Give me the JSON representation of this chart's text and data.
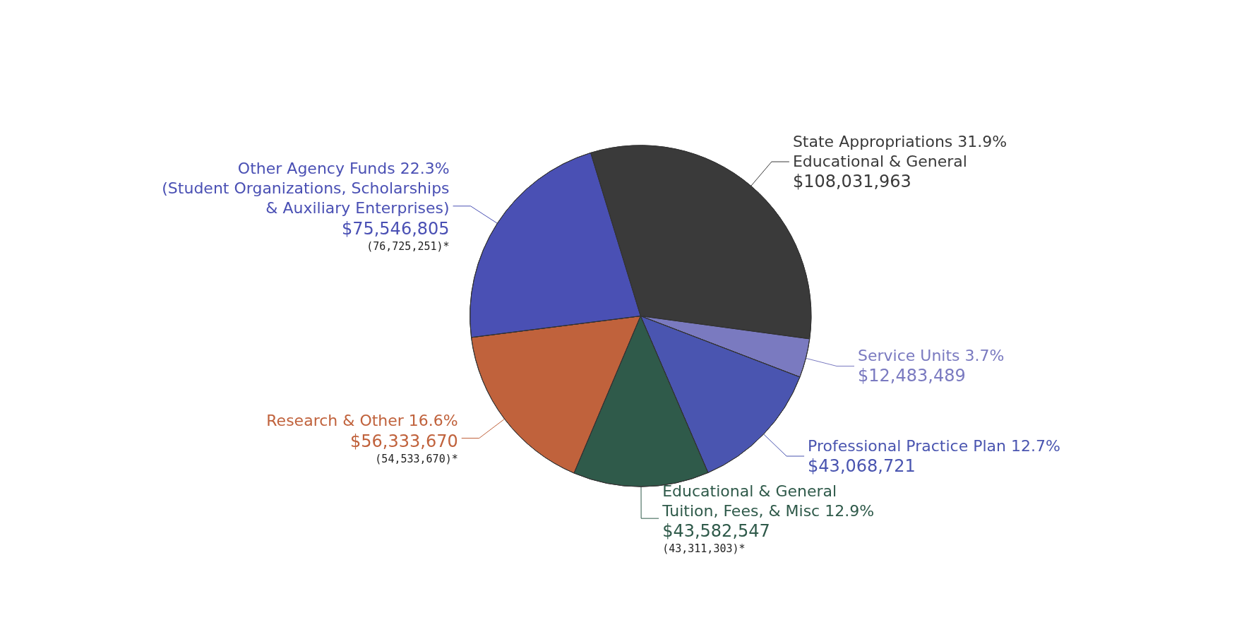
{
  "chart_data": {
    "type": "pie",
    "categories": [
      "State Appropriations 31.9%\nEducational & General",
      "Service Units 3.7%",
      "Professional Practice Plan 12.7%",
      "Educational & General\nTuition, Fees, & Misc 12.9%",
      "Research & Other 16.6%",
      "Other Agency Funds 22.3%\n(Student Organizations, Scholarships\n& Auxiliary Enterprises)"
    ],
    "values": [
      108031963,
      12483489,
      43068721,
      43582547,
      56333670,
      75546805
    ],
    "value_labels": [
      "$108,031,963",
      "$12,483,489",
      "$43,068,721",
      "$43,582,547\n(43,311,303)*",
      "$56,333,670\n(54,533,670)*",
      "$75,546,805\n(76,725,251)*"
    ],
    "colors": [
      "#3a3a3a",
      "#7a7ac0",
      "#4a55b0",
      "#2f5a4a",
      "#c0623c",
      "#4a50b4"
    ],
    "legend": false
  }
}
